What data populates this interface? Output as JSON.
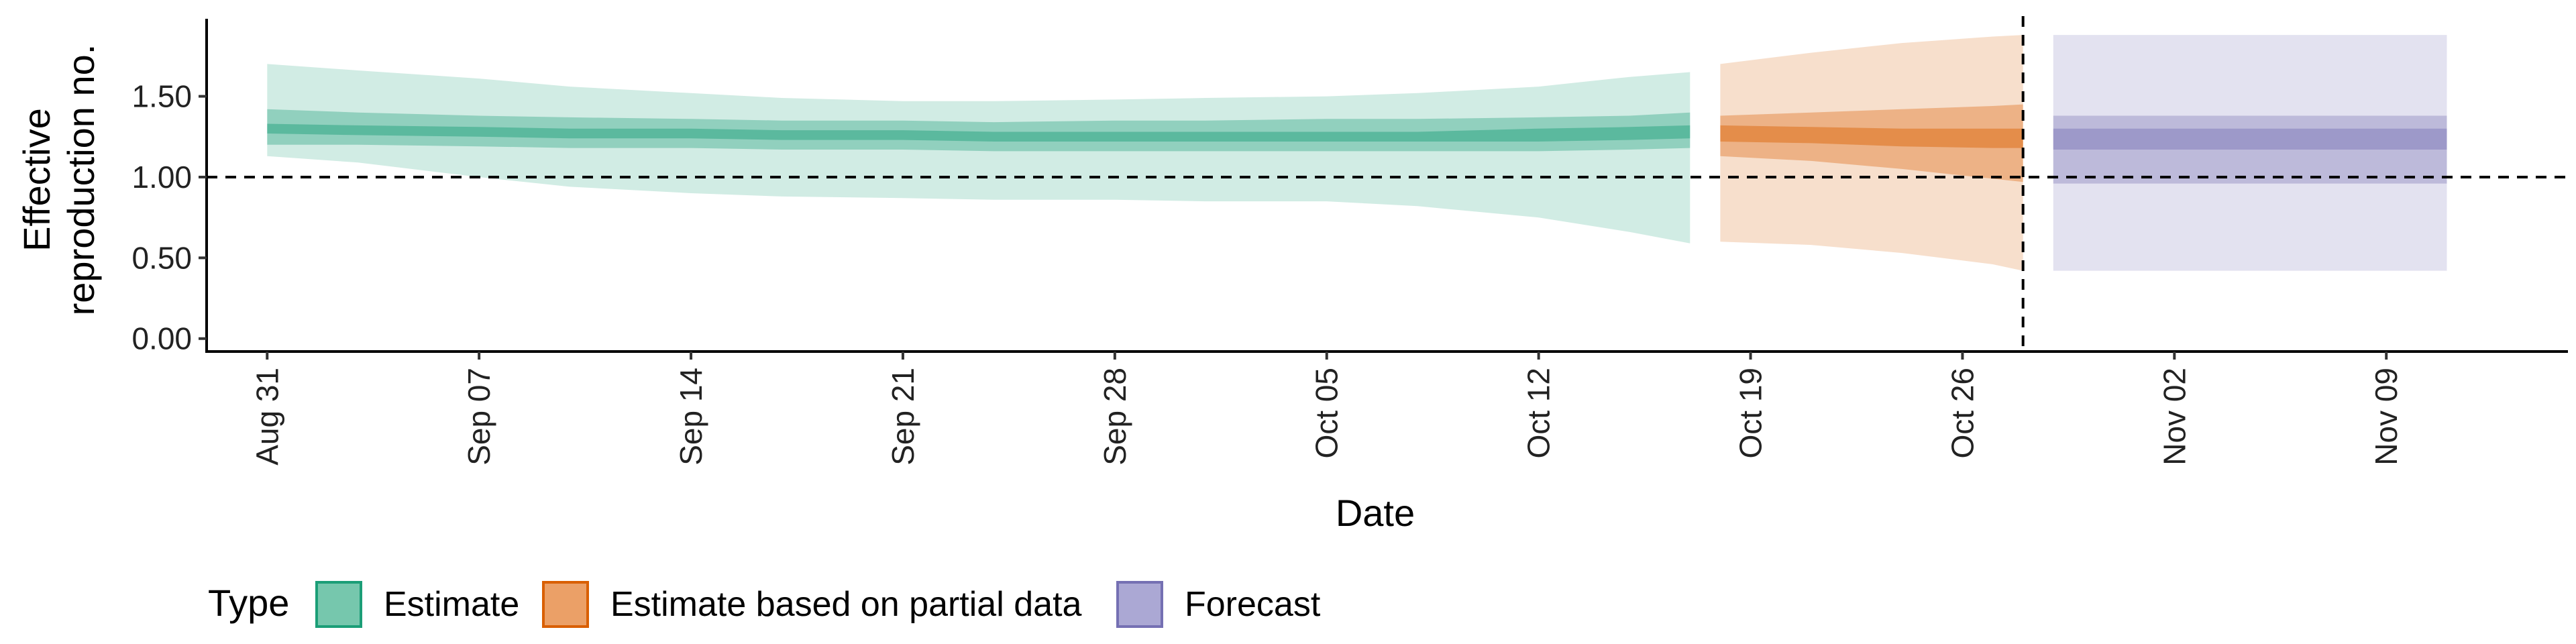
{
  "chart_data": {
    "type": "area",
    "xlabel": "Date",
    "ylabel_lines": [
      "Effective",
      "reproduction no."
    ],
    "x_ticks": [
      "Aug 31",
      "Sep 07",
      "Sep 14",
      "Sep 21",
      "Sep 28",
      "Oct 05",
      "Oct 12",
      "Oct 19",
      "Oct 26",
      "Nov 02",
      "Nov 09"
    ],
    "x_tick_dates": [
      "2020-08-31",
      "2020-09-07",
      "2020-09-14",
      "2020-09-21",
      "2020-09-28",
      "2020-10-05",
      "2020-10-12",
      "2020-10-19",
      "2020-10-26",
      "2020-11-02",
      "2020-11-09"
    ],
    "xlim": [
      "2020-08-29",
      "2020-11-15"
    ],
    "y_ticks": [
      "0.00",
      "0.50",
      "1.00",
      "1.50"
    ],
    "y_tick_values": [
      0,
      0.5,
      1,
      1.5
    ],
    "ylim": [
      -0.08,
      1.98
    ],
    "hline": 1.0,
    "vline_date": "2020-10-28",
    "legend": {
      "title": "Type",
      "position": "bottom",
      "items": [
        {
          "label": "Estimate",
          "color": "#1b9e77"
        },
        {
          "label": "Estimate based on partial data",
          "color": "#d95f02"
        },
        {
          "label": "Forecast",
          "color": "#7570b3"
        }
      ]
    },
    "colors": {
      "Estimate": "#1b9e77",
      "Estimate based on partial data": "#d95f02",
      "Forecast": "#7570b3"
    },
    "series": [
      {
        "name": "Estimate",
        "dates": [
          "2020-08-31",
          "2020-09-03",
          "2020-09-07",
          "2020-09-10",
          "2020-09-14",
          "2020-09-17",
          "2020-09-21",
          "2020-09-24",
          "2020-09-28",
          "2020-10-01",
          "2020-10-05",
          "2020-10-08",
          "2020-10-12",
          "2020-10-15",
          "2020-10-17"
        ],
        "median": [
          1.3,
          1.29,
          1.28,
          1.27,
          1.27,
          1.26,
          1.26,
          1.25,
          1.25,
          1.25,
          1.25,
          1.25,
          1.26,
          1.27,
          1.28
        ],
        "lower_20": [
          1.27,
          1.26,
          1.25,
          1.24,
          1.24,
          1.23,
          1.23,
          1.22,
          1.22,
          1.22,
          1.22,
          1.22,
          1.22,
          1.23,
          1.24
        ],
        "upper_20": [
          1.33,
          1.32,
          1.31,
          1.3,
          1.3,
          1.29,
          1.29,
          1.28,
          1.28,
          1.28,
          1.28,
          1.28,
          1.3,
          1.31,
          1.32
        ],
        "lower_50": [
          1.2,
          1.2,
          1.19,
          1.18,
          1.18,
          1.17,
          1.17,
          1.16,
          1.16,
          1.16,
          1.16,
          1.16,
          1.16,
          1.17,
          1.18
        ],
        "upper_50": [
          1.42,
          1.4,
          1.38,
          1.37,
          1.36,
          1.35,
          1.35,
          1.34,
          1.35,
          1.35,
          1.36,
          1.36,
          1.37,
          1.38,
          1.4
        ],
        "lower_90": [
          1.13,
          1.09,
          1.0,
          0.94,
          0.9,
          0.88,
          0.87,
          0.86,
          0.86,
          0.85,
          0.85,
          0.82,
          0.75,
          0.66,
          0.59
        ],
        "upper_90": [
          1.7,
          1.66,
          1.61,
          1.56,
          1.52,
          1.49,
          1.47,
          1.47,
          1.48,
          1.49,
          1.5,
          1.52,
          1.56,
          1.62,
          1.65
        ]
      },
      {
        "name": "Estimate based on partial data",
        "dates": [
          "2020-10-18",
          "2020-10-21",
          "2020-10-24",
          "2020-10-27",
          "2020-10-28"
        ],
        "median": [
          1.27,
          1.26,
          1.25,
          1.24,
          1.24
        ],
        "lower_20": [
          1.22,
          1.21,
          1.19,
          1.18,
          1.18
        ],
        "upper_20": [
          1.32,
          1.31,
          1.3,
          1.3,
          1.3
        ],
        "lower_50": [
          1.13,
          1.1,
          1.05,
          0.99,
          0.97
        ],
        "upper_50": [
          1.38,
          1.4,
          1.42,
          1.44,
          1.45
        ],
        "lower_90": [
          0.6,
          0.58,
          0.53,
          0.46,
          0.42
        ],
        "upper_90": [
          1.7,
          1.77,
          1.83,
          1.87,
          1.88
        ]
      },
      {
        "name": "Forecast",
        "dates": [
          "2020-10-29",
          "2020-11-11"
        ],
        "median": [
          1.24,
          1.24
        ],
        "lower_20": [
          1.17,
          1.17
        ],
        "upper_20": [
          1.3,
          1.3
        ],
        "lower_50": [
          0.96,
          0.96
        ],
        "upper_50": [
          1.38,
          1.38
        ],
        "lower_90": [
          0.42,
          0.42
        ],
        "upper_90": [
          1.88,
          1.88
        ]
      }
    ]
  }
}
